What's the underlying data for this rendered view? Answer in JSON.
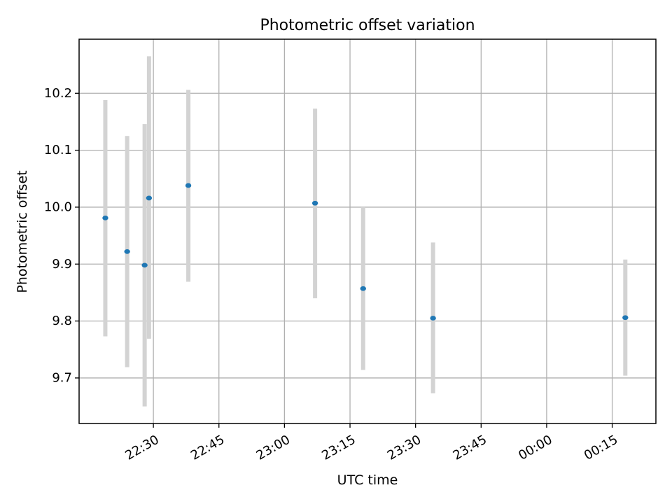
{
  "chart_data": {
    "type": "scatter",
    "title": "Photometric offset variation",
    "xlabel": "UTC time",
    "ylabel": "Photometric offset",
    "x_axis": {
      "kind": "time",
      "min": "22:13",
      "max": "00:25",
      "ticks": [
        "22:30",
        "22:45",
        "23:00",
        "23:15",
        "23:30",
        "23:45",
        "00:00",
        "00:15"
      ]
    },
    "y_axis": {
      "min": 9.62,
      "max": 10.295,
      "ticks": [
        "9.7",
        "9.8",
        "9.9",
        "10.0",
        "10.1",
        "10.2"
      ]
    },
    "grid": true,
    "marker_color": "#1f77b4",
    "errorbar_color": "#d3d3d3",
    "points": [
      {
        "x": "22:19",
        "y": 9.981,
        "lo": 9.773,
        "hi": 10.188
      },
      {
        "x": "22:24",
        "y": 9.922,
        "lo": 9.719,
        "hi": 10.125
      },
      {
        "x": "22:28",
        "y": 9.898,
        "lo": 9.65,
        "hi": 10.146
      },
      {
        "x": "22:29",
        "y": 10.016,
        "lo": 9.769,
        "hi": 10.265
      },
      {
        "x": "22:38",
        "y": 10.038,
        "lo": 9.869,
        "hi": 10.206
      },
      {
        "x": "23:07",
        "y": 10.007,
        "lo": 9.84,
        "hi": 10.173
      },
      {
        "x": "23:18",
        "y": 9.857,
        "lo": 9.714,
        "hi": 10.0
      },
      {
        "x": "23:34",
        "y": 9.805,
        "lo": 9.673,
        "hi": 9.938
      },
      {
        "x": "00:18",
        "y": 9.806,
        "lo": 9.704,
        "hi": 9.908
      }
    ]
  }
}
